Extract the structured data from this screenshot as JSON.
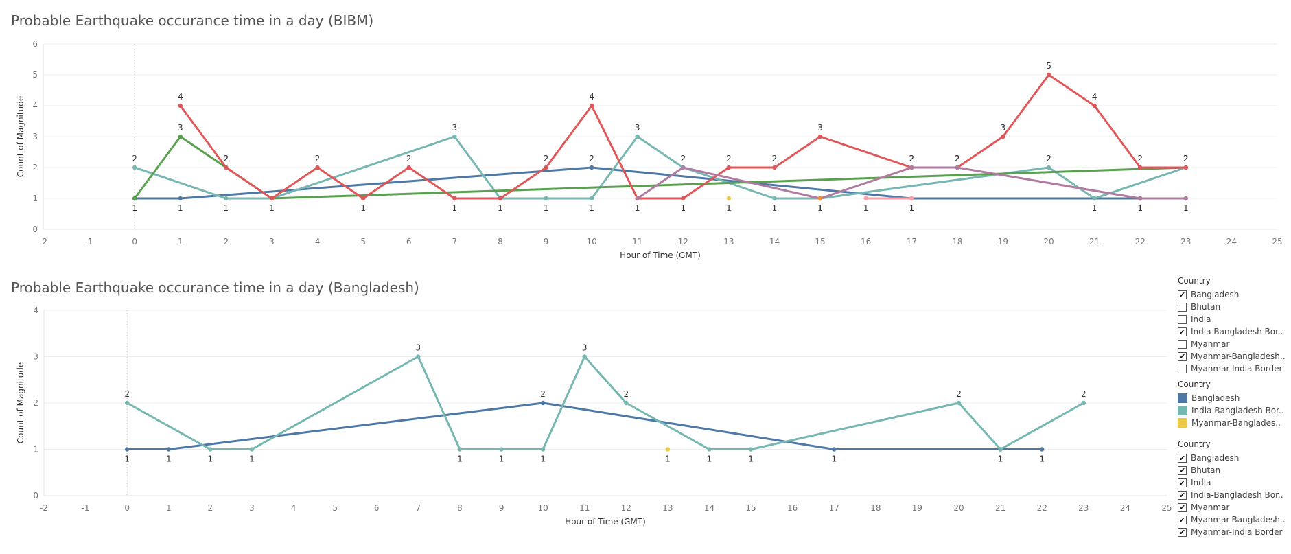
{
  "titles": {
    "top": "Probable Earthquake occurance time in a  day (BIBM)",
    "bottom": "Probable Earthquake occurance time in a  day (Bangladesh)"
  },
  "filters": {
    "top_filter": {
      "title": "Country",
      "items": [
        {
          "label": "Bangladesh",
          "checked": true
        },
        {
          "label": "Bhutan",
          "checked": false
        },
        {
          "label": "India",
          "checked": false
        },
        {
          "label": "India-Bangladesh Bor..",
          "checked": true
        },
        {
          "label": "Myanmar",
          "checked": false
        },
        {
          "label": "Myanmar-Bangladesh..",
          "checked": true
        },
        {
          "label": "Myanmar-India Border",
          "checked": false
        }
      ]
    },
    "legend": {
      "title": "Country",
      "items": [
        {
          "label": "Bangladesh",
          "color": "#4e79a7"
        },
        {
          "label": "India-Bangladesh Bor..",
          "color": "#76b7b2"
        },
        {
          "label": "Myanmar-Banglades..",
          "color": "#edc948"
        }
      ]
    },
    "bottom_filter": {
      "title": "Country",
      "items": [
        {
          "label": "Bangladesh",
          "checked": true
        },
        {
          "label": "Bhutan",
          "checked": true
        },
        {
          "label": "India",
          "checked": true
        },
        {
          "label": "India-Bangladesh Bor..",
          "checked": true
        },
        {
          "label": "Myanmar",
          "checked": true
        },
        {
          "label": "Myanmar-Bangladesh..",
          "checked": true
        },
        {
          "label": "Myanmar-India Border",
          "checked": true
        }
      ]
    }
  },
  "chart_data": [
    {
      "type": "line",
      "title": "Probable Earthquake occurance time in a  day (BIBM)",
      "xlabel": "Hour of Time (GMT)",
      "ylabel": "Count of Magnitude",
      "xlim": [
        -2,
        25
      ],
      "ylim": [
        0,
        6
      ],
      "x_ticks": [
        -2,
        -1,
        0,
        1,
        2,
        3,
        4,
        5,
        6,
        7,
        8,
        9,
        10,
        11,
        12,
        13,
        14,
        15,
        16,
        17,
        18,
        19,
        20,
        21,
        22,
        23,
        24,
        25
      ],
      "y_ticks": [
        0,
        1,
        2,
        3,
        4,
        5,
        6
      ],
      "grid": true,
      "series": [
        {
          "color": "#4e79a7",
          "x": [
            0,
            1,
            10,
            17,
            22
          ],
          "y": [
            1,
            1,
            2,
            1,
            1
          ]
        },
        {
          "color": "#76b7b2",
          "x": [
            0,
            2,
            3,
            7,
            8,
            9,
            10,
            11,
            12,
            14,
            15,
            20,
            21,
            23
          ],
          "y": [
            2,
            1,
            1,
            3,
            1,
            1,
            1,
            3,
            2,
            1,
            1,
            2,
            1,
            2
          ]
        },
        {
          "color": "#59a14f",
          "x": [
            0,
            1,
            2,
            3,
            23
          ],
          "y": [
            1,
            3,
            2,
            1,
            2
          ]
        },
        {
          "color": "#e15759",
          "x": [
            1,
            2,
            3,
            4,
            5,
            6,
            7,
            8,
            9,
            10,
            11,
            12,
            13,
            14,
            15,
            17,
            18,
            19,
            20,
            21,
            22,
            23
          ],
          "y": [
            4,
            2,
            1,
            2,
            1,
            2,
            1,
            1,
            2,
            4,
            1,
            1,
            2,
            2,
            3,
            2,
            2,
            3,
            5,
            4,
            2,
            2
          ]
        },
        {
          "color": "#b07aa1",
          "x": [
            11,
            12,
            15,
            17,
            18,
            22,
            23
          ],
          "y": [
            1,
            2,
            1,
            2,
            2,
            1,
            1
          ]
        },
        {
          "color": "#ff9da7",
          "x": [
            16,
            17
          ],
          "y": [
            1,
            1
          ]
        },
        {
          "color": "#edc948",
          "x": [
            13
          ],
          "y": [
            1
          ]
        },
        {
          "color": "#f28e2b",
          "x": [
            15
          ],
          "y": [
            1
          ]
        }
      ]
    },
    {
      "type": "line",
      "title": "Probable Earthquake occurance time in a  day (Bangladesh)",
      "xlabel": "Hour of Time (GMT)",
      "ylabel": "Count of Magnitude",
      "xlim": [
        -2,
        25
      ],
      "ylim": [
        0,
        4
      ],
      "x_ticks": [
        -2,
        -1,
        0,
        1,
        2,
        3,
        4,
        5,
        6,
        7,
        8,
        9,
        10,
        11,
        12,
        13,
        14,
        15,
        16,
        17,
        18,
        19,
        20,
        21,
        22,
        23,
        24,
        25
      ],
      "y_ticks": [
        0,
        1,
        2,
        3,
        4
      ],
      "grid": true,
      "series": [
        {
          "name": "Bangladesh",
          "color": "#4e79a7",
          "x": [
            0,
            1,
            10,
            17,
            21,
            22
          ],
          "y": [
            1,
            1,
            2,
            1,
            1,
            1
          ]
        },
        {
          "name": "India-Bangladesh Bor..",
          "color": "#76b7b2",
          "x": [
            0,
            2,
            3,
            7,
            8,
            9,
            10,
            11,
            12,
            14,
            15,
            20,
            21,
            23
          ],
          "y": [
            2,
            1,
            1,
            3,
            1,
            1,
            1,
            3,
            2,
            1,
            1,
            2,
            1,
            2
          ]
        },
        {
          "name": "Myanmar-Banglades..",
          "color": "#edc948",
          "x": [
            13
          ],
          "y": [
            1
          ]
        }
      ]
    }
  ]
}
